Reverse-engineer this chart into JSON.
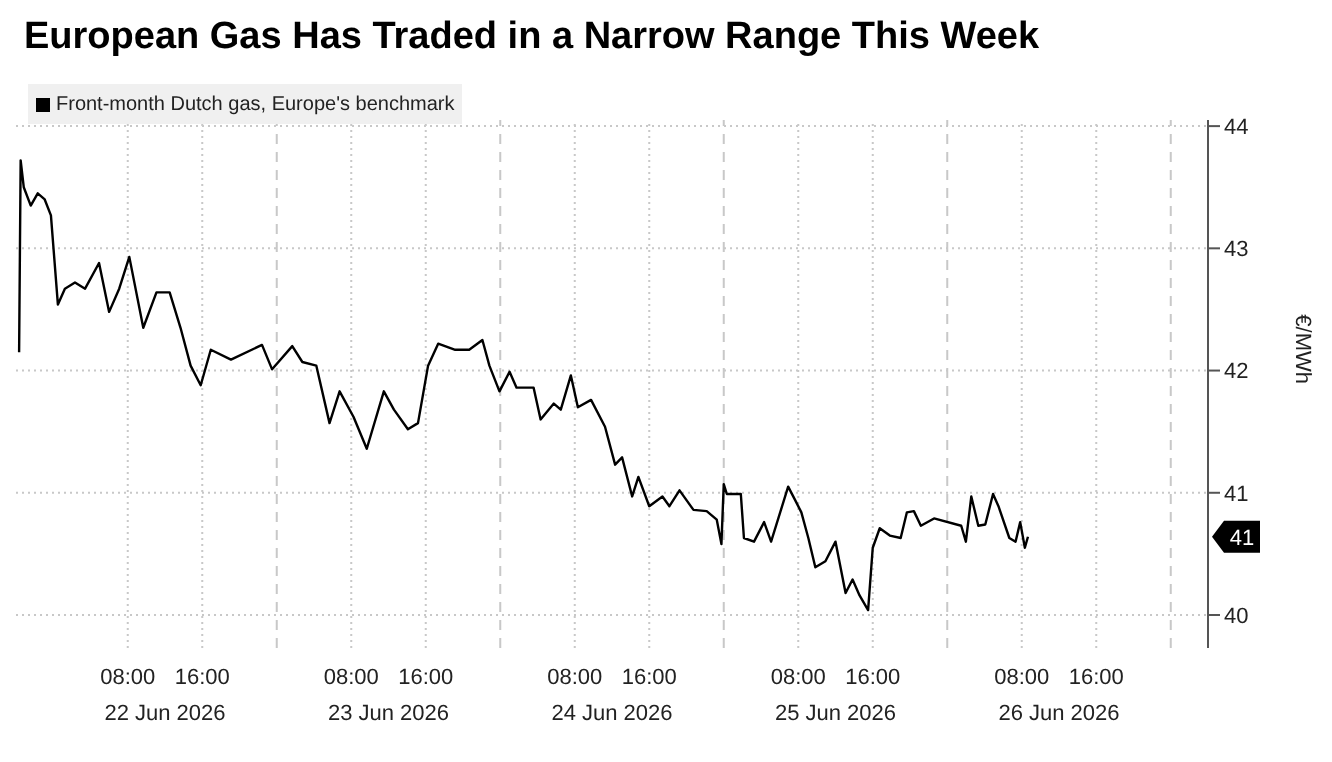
{
  "chart_data": {
    "type": "line",
    "title": "European Gas Has Traded in a Narrow Range This Week",
    "ylabel": "€/MWh",
    "x": [
      "2026-06-21T20:20",
      "2026-06-21T20:30",
      "2026-06-21T20:50",
      "2026-06-21T21:35",
      "2026-06-21T22:20",
      "2026-06-21T23:05",
      "2026-06-21T23:45",
      "2026-06-22T00:30",
      "2026-06-22T01:15",
      "2026-06-22T02:20",
      "2026-06-22T03:25",
      "2026-06-22T04:55",
      "2026-06-22T06:00",
      "2026-06-22T07:05",
      "2026-06-22T08:10",
      "2026-06-22T09:40",
      "2026-06-22T11:05",
      "2026-06-22T12:30",
      "2026-06-22T13:40",
      "2026-06-22T14:45",
      "2026-06-22T15:50",
      "2026-06-22T16:55",
      "2026-06-22T19:05",
      "2026-06-22T22:25",
      "2026-06-22T23:30",
      "2026-06-23T01:40",
      "2026-06-23T02:45",
      "2026-06-23T04:15",
      "2026-06-23T05:40",
      "2026-06-23T06:45",
      "2026-06-23T08:15",
      "2026-06-23T09:40",
      "2026-06-23T11:30",
      "2026-06-23T12:35",
      "2026-06-23T14:05",
      "2026-06-23T15:10",
      "2026-06-23T16:15",
      "2026-06-23T17:20",
      "2026-06-23T19:10",
      "2026-06-23T20:40",
      "2026-06-23T22:05",
      "2026-06-23T22:50",
      "2026-06-23T23:55",
      "2026-06-24T01:00",
      "2026-06-24T01:45",
      "2026-06-24T03:35",
      "2026-06-24T04:20",
      "2026-06-24T05:45",
      "2026-06-24T06:30",
      "2026-06-24T07:35",
      "2026-06-24T08:20",
      "2026-06-24T09:45",
      "2026-06-24T11:15",
      "2026-06-24T12:20",
      "2026-06-24T13:05",
      "2026-06-24T14:10",
      "2026-06-24T14:50",
      "2026-06-24T16:00",
      "2026-06-24T17:25",
      "2026-06-24T18:10",
      "2026-06-24T19:15",
      "2026-06-24T20:45",
      "2026-06-24T22:10",
      "2026-06-24T23:15",
      "2026-06-24T23:45",
      "2026-06-25T00:00",
      "2026-06-25T00:20",
      "2026-06-25T01:50",
      "2026-06-25T02:10",
      "2026-06-25T03:15",
      "2026-06-25T04:20",
      "2026-06-25T05:05",
      "2026-06-25T06:55",
      "2026-06-25T07:40",
      "2026-06-25T08:20",
      "2026-06-25T09:05",
      "2026-06-25T09:50",
      "2026-06-25T10:55",
      "2026-06-25T12:00",
      "2026-06-25T13:05",
      "2026-06-25T13:50",
      "2026-06-25T14:35",
      "2026-06-25T15:30",
      "2026-06-25T16:00",
      "2026-06-25T16:45",
      "2026-06-25T17:50",
      "2026-06-25T19:00",
      "2026-06-25T19:40",
      "2026-06-25T20:25",
      "2026-06-25T21:10",
      "2026-06-25T22:35",
      "2026-06-26T01:30",
      "2026-06-26T02:00",
      "2026-06-26T02:35",
      "2026-06-26T03:20",
      "2026-06-26T04:05",
      "2026-06-26T04:55",
      "2026-06-26T05:30",
      "2026-06-26T06:40",
      "2026-06-26T07:20",
      "2026-06-26T07:50",
      "2026-06-26T08:20",
      "2026-06-26T08:40"
    ],
    "series": [
      {
        "name": "Front-month Dutch gas, Europe's benchmark",
        "color": "#000000",
        "values": [
          42.15,
          43.72,
          43.5,
          43.35,
          43.45,
          43.4,
          43.27,
          42.54,
          42.67,
          42.72,
          42.67,
          42.88,
          42.48,
          42.67,
          42.93,
          42.35,
          42.64,
          42.64,
          42.35,
          42.04,
          41.88,
          42.17,
          42.09,
          42.21,
          42.01,
          42.2,
          42.07,
          42.04,
          41.57,
          41.83,
          41.62,
          41.36,
          41.83,
          41.68,
          41.52,
          41.57,
          42.04,
          42.22,
          42.17,
          42.17,
          42.25,
          42.04,
          41.83,
          41.99,
          41.86,
          41.86,
          41.6,
          41.73,
          41.68,
          41.96,
          41.7,
          41.76,
          41.54,
          41.23,
          41.29,
          40.97,
          41.13,
          40.89,
          40.97,
          40.89,
          41.02,
          40.86,
          40.85,
          40.78,
          40.58,
          41.07,
          40.99,
          40.99,
          40.63,
          40.6,
          40.76,
          40.6,
          41.05,
          40.94,
          40.84,
          40.63,
          40.39,
          40.44,
          40.6,
          40.18,
          40.29,
          40.16,
          40.04,
          40.55,
          40.71,
          40.65,
          40.63,
          40.84,
          40.85,
          40.73,
          40.79,
          40.73,
          40.6,
          40.97,
          40.73,
          40.74,
          40.99,
          40.89,
          40.63,
          40.6,
          40.76,
          40.55,
          40.64
        ]
      }
    ],
    "xlim": [
      "2026-06-21T20:00",
      "2026-06-27T04:00"
    ],
    "xticks": [
      {
        "value": "2026-06-22T08:00",
        "label": "08:00"
      },
      {
        "value": "2026-06-22T16:00",
        "label": "16:00"
      },
      {
        "value": "2026-06-23T00:00",
        "label": null
      },
      {
        "value": "2026-06-23T08:00",
        "label": "08:00"
      },
      {
        "value": "2026-06-23T16:00",
        "label": "16:00"
      },
      {
        "value": "2026-06-24T00:00",
        "label": null
      },
      {
        "value": "2026-06-24T08:00",
        "label": "08:00"
      },
      {
        "value": "2026-06-24T16:00",
        "label": "16:00"
      },
      {
        "value": "2026-06-25T00:00",
        "label": null
      },
      {
        "value": "2026-06-25T08:00",
        "label": "08:00"
      },
      {
        "value": "2026-06-25T16:00",
        "label": "16:00"
      },
      {
        "value": "2026-06-26T00:00",
        "label": null
      },
      {
        "value": "2026-06-26T08:00",
        "label": "08:00"
      },
      {
        "value": "2026-06-26T16:00",
        "label": "16:00"
      },
      {
        "value": "2026-06-27T00:00",
        "label": null
      }
    ],
    "x2lim": [
      "2026-06-21T20:00",
      "2026-06-27T04:00"
    ],
    "x2ticks": [
      {
        "value": "2026-06-22T12:00",
        "label": "22 Jun 2026"
      },
      {
        "value": "2026-06-23T12:00",
        "label": "23 Jun 2026"
      },
      {
        "value": "2026-06-24T12:00",
        "label": "24 Jun 2026"
      },
      {
        "value": "2026-06-25T12:00",
        "label": "25 Jun 2026"
      },
      {
        "value": "2026-06-26T12:00",
        "label": "26 Jun 2026"
      }
    ],
    "ylim": [
      39.73,
      44.05
    ],
    "yticks": [
      40,
      41,
      42,
      43,
      44
    ],
    "annotations": [
      "41"
    ],
    "grid": true,
    "legend": "top left",
    "line_style": "solid",
    "marker": "none"
  }
}
